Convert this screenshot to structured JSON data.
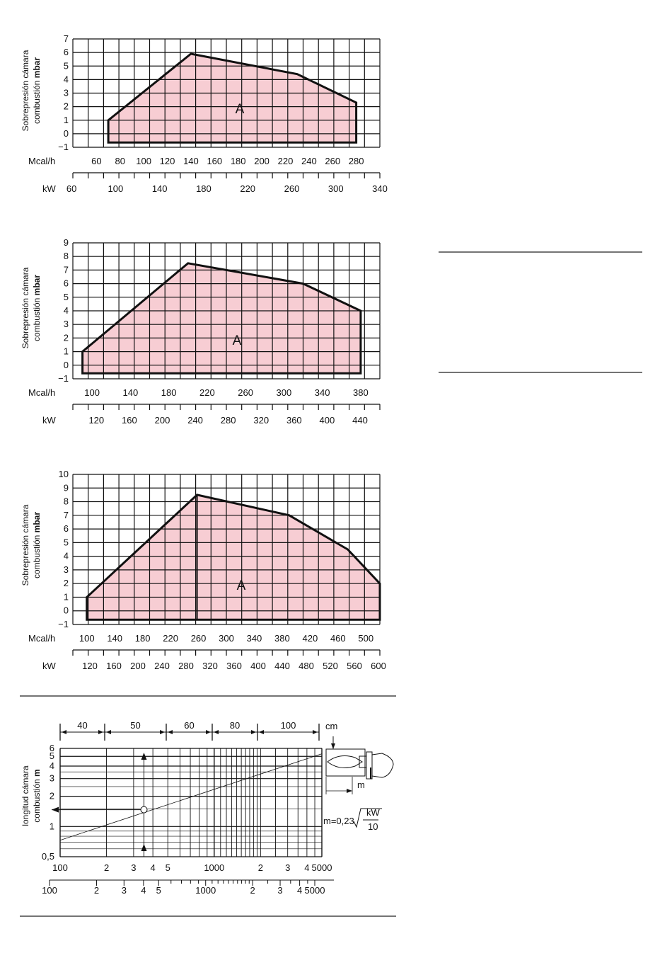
{
  "chart_data": [
    {
      "type": "area",
      "ylabel_line1": "Sobrepresión cámara",
      "ylabel_line2": "combustión",
      "ylabel_unit": "mbar",
      "x_unit_primary": "Mcal/h",
      "x_unit_secondary": "kW",
      "region_label": "A",
      "ylim": [
        -1,
        7
      ],
      "xlim": [
        40,
        300
      ],
      "x_ticks_mcal": [
        60,
        80,
        100,
        120,
        140,
        160,
        180,
        200,
        220,
        240,
        260,
        280
      ],
      "x2_ticks_kw": [
        60,
        100,
        140,
        180,
        220,
        260,
        300,
        340
      ],
      "boundary": {
        "x_mcal": [
          70,
          70,
          140,
          230,
          280,
          280
        ],
        "y_mbar": [
          -0.65,
          1,
          5.9,
          4.4,
          2.3,
          -0.65
        ]
      },
      "fill_color": "#f7cdd3",
      "grid": true
    },
    {
      "type": "area",
      "ylabel_line1": "Sobrepresión cámara",
      "ylabel_line2": "combustión",
      "ylabel_unit": "mbar",
      "x_unit_primary": "Mcal/h",
      "x_unit_secondary": "kW",
      "region_label": "A",
      "ylim": [
        -1,
        9
      ],
      "xlim": [
        80,
        400
      ],
      "x_ticks_mcal": [
        100,
        140,
        180,
        220,
        260,
        300,
        340,
        380
      ],
      "x2_ticks_kw": [
        120,
        160,
        200,
        240,
        280,
        320,
        360,
        400,
        440
      ],
      "boundary": {
        "x_mcal": [
          90,
          90,
          200,
          320,
          380,
          380
        ],
        "y_mbar": [
          -0.6,
          1,
          7.5,
          6.0,
          4.0,
          -0.6
        ]
      },
      "fill_color": "#f7cdd3",
      "grid": true
    },
    {
      "type": "area",
      "ylabel_line1": "Sobrepresión cámara",
      "ylabel_line2": "combustión",
      "ylabel_unit": "mbar",
      "x_unit_primary": "Mcal/h",
      "x_unit_secondary": "kW",
      "region_label": "A",
      "ylim": [
        -1,
        10
      ],
      "xlim": [
        80,
        520
      ],
      "x_ticks_mcal": [
        100,
        140,
        180,
        220,
        260,
        300,
        340,
        380,
        420,
        460,
        500
      ],
      "x2_ticks_kw": [
        120,
        160,
        200,
        240,
        280,
        320,
        360,
        400,
        440,
        480,
        520,
        560,
        600
      ],
      "boundary": {
        "x_mcal": [
          100,
          100,
          258,
          390,
          474,
          520,
          520
        ],
        "y_mbar": [
          -0.65,
          1,
          8.5,
          7.0,
          4.5,
          2.0,
          -0.65
        ]
      },
      "divider_x_mcal": 258,
      "fill_color": "#f7cdd3",
      "grid": true
    },
    {
      "type": "line",
      "ylabel_line1": "longitud cámara",
      "ylabel_line2": "combustión",
      "ylabel_unit": "m",
      "x_scale": "log",
      "y_scale": "log",
      "xlim": [
        100,
        5000
      ],
      "ylim": [
        0.5,
        6
      ],
      "y_ticks": [
        "6",
        "5",
        "4",
        "3",
        "2",
        "1",
        "0,5"
      ],
      "x_ticks": [
        "100",
        "2",
        "3",
        "4",
        "5",
        "1000",
        "2",
        "3",
        "4",
        "5000"
      ],
      "x2_ticks": [
        "100",
        "2",
        "3",
        "4",
        "5",
        "1000",
        "2",
        "3",
        "4",
        "5000"
      ],
      "top_unit": "cm",
      "top_segments": [
        "40",
        "50",
        "60",
        "80",
        "100"
      ],
      "formula_prefix": "m=0,23",
      "formula_num": "kW",
      "formula_den": "10",
      "side_unit": "m",
      "series": [
        {
          "x": [
            100,
            5000
          ],
          "y": [
            0.73,
            5.3
          ]
        }
      ],
      "marker": {
        "x": 350,
        "y": 1.47
      },
      "grid": true
    }
  ]
}
